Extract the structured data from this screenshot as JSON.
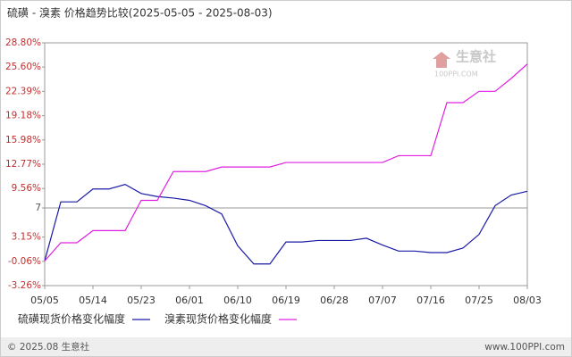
{
  "chart_data": {
    "type": "line",
    "title": "硫磺 - 溴素 价格趋势比较(2025-05-05 - 2025-08-03)",
    "x": [
      "05/05",
      "05/08",
      "05/11",
      "05/14",
      "05/17",
      "05/20",
      "05/23",
      "05/26",
      "05/29",
      "06/01",
      "06/04",
      "06/07",
      "06/10",
      "06/13",
      "06/16",
      "06/19",
      "06/22",
      "06/25",
      "06/28",
      "07/01",
      "07/04",
      "07/07",
      "07/10",
      "07/13",
      "07/16",
      "07/19",
      "07/22",
      "07/25",
      "07/28",
      "07/31",
      "08/03"
    ],
    "xticks": [
      "05/05",
      "05/14",
      "05/23",
      "06/01",
      "06/10",
      "06/19",
      "06/28",
      "07/07",
      "07/16",
      "07/25",
      "08/03"
    ],
    "ylim": [
      -3.26,
      28.8
    ],
    "yticks": [
      {
        "value": 28.8,
        "label": "28.80%"
      },
      {
        "value": 25.6,
        "label": "25.60%"
      },
      {
        "value": 22.39,
        "label": "22.39%"
      },
      {
        "value": 19.18,
        "label": "19.18%"
      },
      {
        "value": 15.98,
        "label": "15.98%"
      },
      {
        "value": 12.77,
        "label": "12.77%"
      },
      {
        "value": 9.56,
        "label": "9.56%"
      },
      7,
      {
        "value": 3.15,
        "label": "3.15%"
      },
      {
        "value": -0.06,
        "label": "-0.06%"
      },
      {
        "value": -3.26,
        "label": "-3.26%"
      }
    ],
    "reference_line": 7,
    "series": [
      {
        "name": "硫磺现货价格变化幅度",
        "color": "#1a1aa6",
        "values": [
          0,
          7.8,
          7.8,
          9.5,
          9.5,
          10.1,
          8.9,
          8.5,
          8.3,
          8.0,
          7.3,
          6.2,
          2.0,
          -0.4,
          -0.4,
          2.5,
          2.5,
          2.7,
          2.7,
          2.7,
          3.0,
          2.1,
          1.3,
          1.3,
          1.1,
          1.1,
          1.7,
          3.5,
          7.3,
          8.7,
          9.2
        ]
      },
      {
        "name": "溴素现货价格变化幅度",
        "color": "#e020e0",
        "values": [
          0,
          2.4,
          2.4,
          4.0,
          4.0,
          4.0,
          8.0,
          8.0,
          11.8,
          11.8,
          11.8,
          12.4,
          12.4,
          12.4,
          12.4,
          13.0,
          13.0,
          13.0,
          13.0,
          13.0,
          13.0,
          13.0,
          13.9,
          13.9,
          13.9,
          20.9,
          20.9,
          22.4,
          22.4,
          24.1,
          26.0
        ]
      }
    ],
    "watermark": {
      "name": "生意社",
      "site": "100PPI.COM"
    },
    "footer": {
      "left": "© 2025.08 生意社",
      "right": "www.100PPI.com"
    }
  }
}
